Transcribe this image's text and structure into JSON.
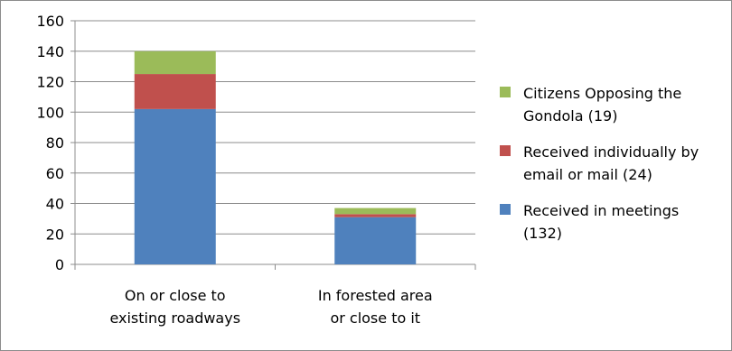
{
  "chart_data": {
    "type": "bar",
    "stacked": true,
    "categories": [
      "On or close to existing roadways",
      "In forested area or close to it"
    ],
    "category_lines": [
      [
        "On or close to",
        "existing roadways"
      ],
      [
        "In forested area",
        "or close to it"
      ]
    ],
    "series": [
      {
        "name": "Received in meetings (132)",
        "values": [
          102,
          31
        ],
        "color": "#4f81bd"
      },
      {
        "name": "Received individually by email or mail (24)",
        "values": [
          23,
          2
        ],
        "color": "#c0504d"
      },
      {
        "name": "Citizens Opposing the Gondola (19)",
        "values": [
          15,
          4
        ],
        "color": "#9bbb59"
      }
    ],
    "legend_lines": [
      [
        "Citizens Opposing the",
        "Gondola (19)"
      ],
      [
        "Received individually by",
        "email or mail (24)"
      ],
      [
        "Received in meetings",
        "(132)"
      ]
    ],
    "legend_order": [
      2,
      1,
      0
    ],
    "ylim": [
      0,
      160
    ],
    "yticks": [
      0,
      20,
      40,
      60,
      80,
      100,
      120,
      140,
      160
    ],
    "grid": true,
    "legend_position": "right",
    "title": "",
    "xlabel": "",
    "ylabel": ""
  }
}
